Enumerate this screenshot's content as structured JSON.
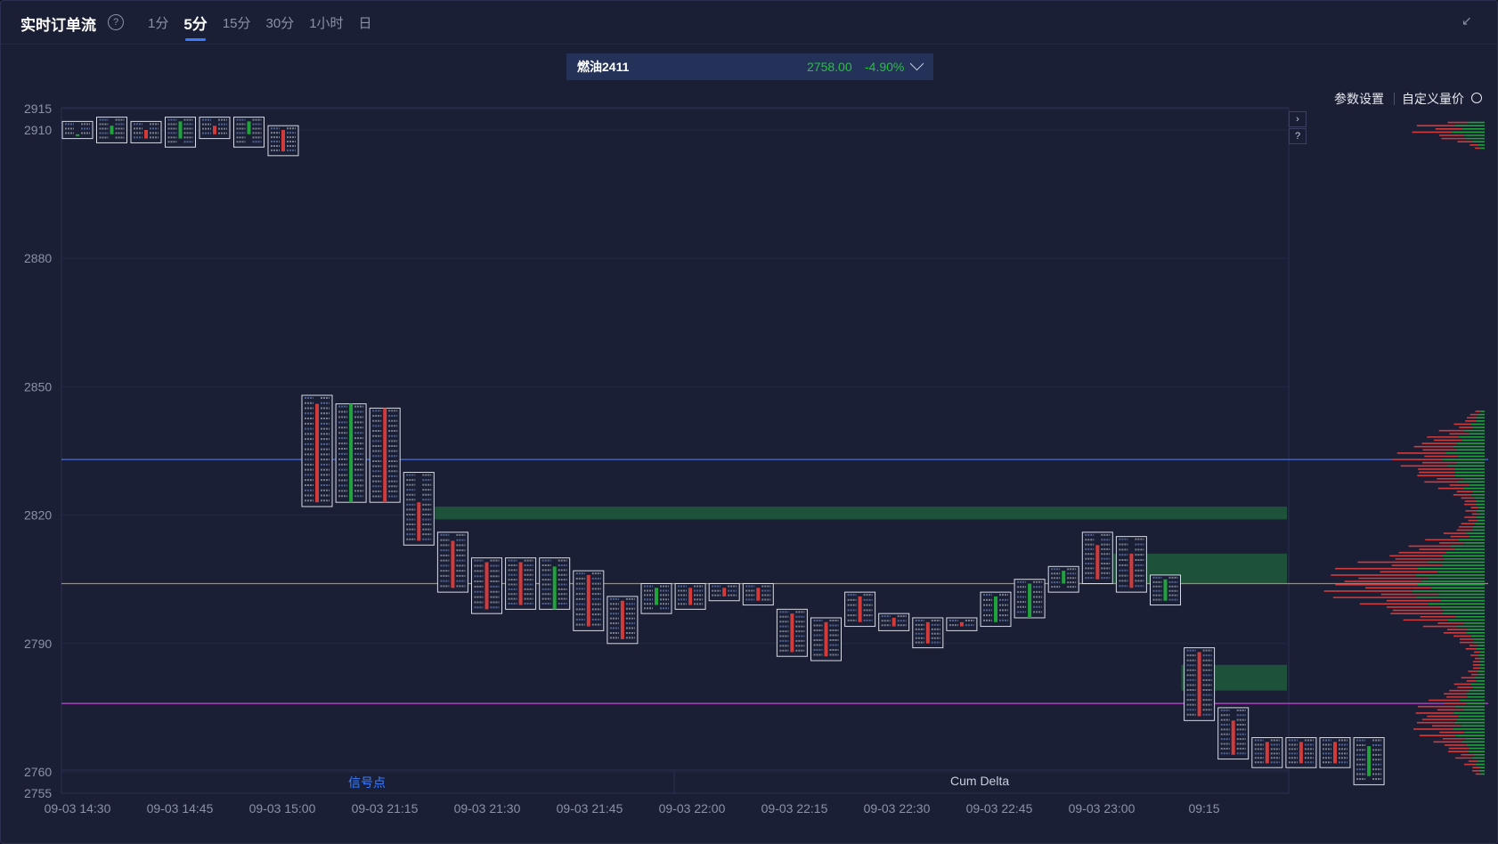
{
  "header": {
    "title": "实时订单流",
    "help_icon": "?",
    "tabs": [
      {
        "label": "1分",
        "active": false
      },
      {
        "label": "5分",
        "active": true
      },
      {
        "label": "15分",
        "active": false
      },
      {
        "label": "30分",
        "active": false
      },
      {
        "label": "1小时",
        "active": false
      },
      {
        "label": "日",
        "active": false
      }
    ],
    "collapse_icon": "↙"
  },
  "symbol": {
    "name": "燃油2411",
    "price": "2758.00",
    "change": "-4.90%"
  },
  "toolbar": {
    "params_label": "参数设置",
    "custom_label": "自定义量价"
  },
  "side_buttons": {
    "next": "›",
    "help": "?"
  },
  "bottom_panel": {
    "signal_label": "信号点",
    "cum_delta_label": "Cum Delta"
  },
  "colors": {
    "background": "#1a1f35",
    "up": "#1fa33a",
    "down": "#d33a3a",
    "accent": "#3b7cff",
    "blue_line": "#4a6fd8",
    "gold_line": "#b08a4a",
    "magenta_line": "#c04ad0",
    "zone": "#1e5a3a"
  },
  "chart_data": {
    "type": "footprint",
    "y_ticks": [
      2915,
      2910,
      2880,
      2850,
      2820,
      2790,
      2760,
      2755
    ],
    "ylim": [
      2755,
      2915
    ],
    "x_ticks": [
      "09-03 14:30",
      "09-03 14:45",
      "09-03 15:00",
      "09-03 21:15",
      "09-03 21:30",
      "09-03 21:45",
      "09-03 22:00",
      "09-03 22:15",
      "09-03 22:30",
      "09-03 22:45",
      "09-03 23:00",
      "09:15"
    ],
    "horizontal_lines": [
      {
        "price": 2833,
        "color": "blue"
      },
      {
        "price": 2804,
        "color": "gold"
      },
      {
        "price": 2776,
        "color": "magenta"
      }
    ],
    "zones": [
      {
        "low": 2819,
        "high": 2822,
        "from_candle": 10
      },
      {
        "low": 2804,
        "high": 2811,
        "from_candle": 30
      },
      {
        "low": 2779,
        "high": 2785,
        "from_candle": 32
      }
    ],
    "candles": [
      {
        "open": 2909,
        "high": 2912,
        "low": 2908,
        "close": 2909
      },
      {
        "open": 2909,
        "high": 2913,
        "low": 2907,
        "close": 2911
      },
      {
        "open": 2910,
        "high": 2912,
        "low": 2907,
        "close": 2908
      },
      {
        "open": 2908,
        "high": 2913,
        "low": 2906,
        "close": 2912
      },
      {
        "open": 2911,
        "high": 2913,
        "low": 2908,
        "close": 2909
      },
      {
        "open": 2909,
        "high": 2913,
        "low": 2906,
        "close": 2912
      },
      {
        "open": 2910,
        "high": 2911,
        "low": 2904,
        "close": 2905
      },
      {
        "open": 2846,
        "high": 2848,
        "low": 2822,
        "close": 2823
      },
      {
        "open": 2823,
        "high": 2846,
        "low": 2823,
        "close": 2846
      },
      {
        "open": 2845,
        "high": 2845,
        "low": 2823,
        "close": 2823
      },
      {
        "open": 2823,
        "high": 2830,
        "low": 2813,
        "close": 2814
      },
      {
        "open": 2814,
        "high": 2816,
        "low": 2802,
        "close": 2803
      },
      {
        "open": 2809,
        "high": 2810,
        "low": 2797,
        "close": 2798
      },
      {
        "open": 2809,
        "high": 2810,
        "low": 2798,
        "close": 2799
      },
      {
        "open": 2798,
        "high": 2810,
        "low": 2798,
        "close": 2808
      },
      {
        "open": 2806,
        "high": 2807,
        "low": 2793,
        "close": 2794
      },
      {
        "open": 2800,
        "high": 2801,
        "low": 2790,
        "close": 2791
      },
      {
        "open": 2799,
        "high": 2804,
        "low": 2797,
        "close": 2803
      },
      {
        "open": 2803,
        "high": 2804,
        "low": 2798,
        "close": 2799
      },
      {
        "open": 2803,
        "high": 2804,
        "low": 2800,
        "close": 2801
      },
      {
        "open": 2803,
        "high": 2804,
        "low": 2799,
        "close": 2800
      },
      {
        "open": 2797,
        "high": 2798,
        "low": 2787,
        "close": 2788
      },
      {
        "open": 2795,
        "high": 2796,
        "low": 2786,
        "close": 2787
      },
      {
        "open": 2801,
        "high": 2802,
        "low": 2794,
        "close": 2795
      },
      {
        "open": 2796,
        "high": 2797,
        "low": 2793,
        "close": 2794
      },
      {
        "open": 2795,
        "high": 2796,
        "low": 2789,
        "close": 2790
      },
      {
        "open": 2795,
        "high": 2796,
        "low": 2793,
        "close": 2794
      },
      {
        "open": 2795,
        "high": 2802,
        "low": 2794,
        "close": 2801
      },
      {
        "open": 2796,
        "high": 2805,
        "low": 2796,
        "close": 2804
      },
      {
        "open": 2804,
        "high": 2808,
        "low": 2802,
        "close": 2807
      },
      {
        "open": 2813,
        "high": 2816,
        "low": 2804,
        "close": 2805
      },
      {
        "open": 2811,
        "high": 2815,
        "low": 2802,
        "close": 2803
      },
      {
        "open": 2800,
        "high": 2806,
        "low": 2799,
        "close": 2805
      },
      {
        "open": 2788,
        "high": 2789,
        "low": 2772,
        "close": 2773
      },
      {
        "open": 2772,
        "high": 2775,
        "low": 2763,
        "close": 2764
      },
      {
        "open": 2767,
        "high": 2768,
        "low": 2761,
        "close": 2762
      },
      {
        "open": 2767,
        "high": 2768,
        "low": 2761,
        "close": 2762
      },
      {
        "open": 2767,
        "high": 2768,
        "low": 2761,
        "close": 2762
      },
      {
        "open": 2759,
        "high": 2768,
        "low": 2757,
        "close": 2766
      }
    ]
  }
}
